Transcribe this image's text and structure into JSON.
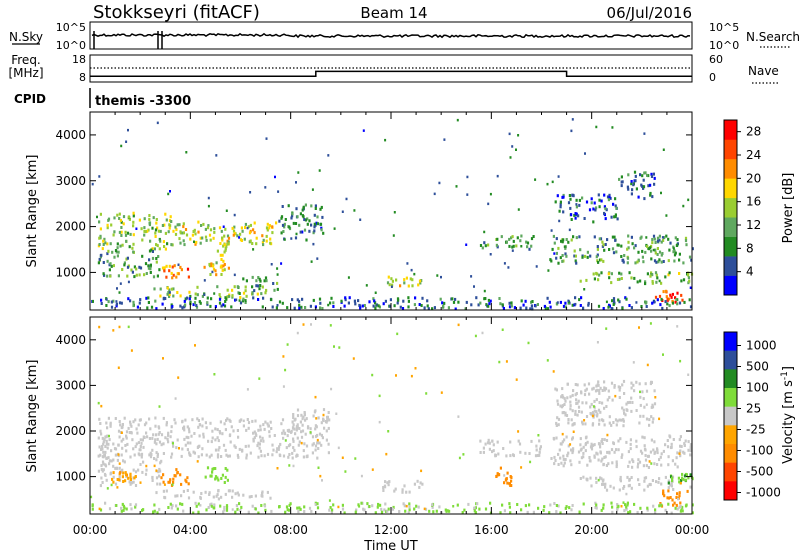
{
  "header": {
    "station": "Stokkseyri (fitACF)",
    "beam": "Beam 14",
    "date": "06/Jul/2016"
  },
  "left_labels": {
    "nsky": "N.Sky",
    "freq_line1": "Freq.",
    "freq_line2": "[MHz]",
    "cpid": "CPID"
  },
  "right_labels": {
    "nsearch": "N.Search",
    "nave": "Nave"
  },
  "cpid_name": "themis -3300",
  "colors": {
    "power": [
      "#0000ff",
      "#2e4f9a",
      "#228b22",
      "#5fa85f",
      "#9acd32",
      "#ffd700",
      "#ff8c00",
      "#ff4500",
      "#ff0000"
    ],
    "velocity": [
      "#ff0000",
      "#ff4500",
      "#ff8c00",
      "#ffa500",
      "#c8c8c8",
      "#c8c8c8",
      "#7fdc3a",
      "#228b22",
      "#2e4f9a",
      "#0000ff"
    ],
    "ground_scatter": "#c8c8c8"
  },
  "chart_data": [
    {
      "type": "line",
      "name": "nsky-nsearch-panel",
      "left_ticks": [
        "10^5",
        "10^0"
      ],
      "right_ticks": [
        "10^5",
        "10^0"
      ]
    },
    {
      "type": "line",
      "name": "freq-nave-panel",
      "left_ticks": [
        "18",
        "8"
      ],
      "right_ticks": [
        "60",
        "0"
      ],
      "x": [
        "00:00",
        "09:00",
        "09:00",
        "19:00",
        "19:00",
        "24:00"
      ],
      "freq_mhz": [
        10,
        10,
        12,
        12,
        10,
        10
      ]
    },
    {
      "type": "heatmap",
      "name": "power-panel",
      "ylabel": "Slant Range [km]",
      "yticks": [
        "1000",
        "2000",
        "3000",
        "4000"
      ],
      "ylim": [
        180,
        4500
      ],
      "colorbar_label": "Power [dB]",
      "colorbar_ticks": [
        "4",
        "8",
        "12",
        "16",
        "20",
        "24",
        "28"
      ],
      "colorbar_range": [
        0,
        30
      ],
      "regions": [
        {
          "t": [
            0.3,
            3.2
          ],
          "r": [
            1500,
            2300
          ],
          "dB": 14
        },
        {
          "t": [
            3.2,
            7.5
          ],
          "r": [
            1600,
            2100
          ],
          "dB": 16
        },
        {
          "t": [
            7.5,
            9.3
          ],
          "r": [
            1700,
            2500
          ],
          "dB": 8
        },
        {
          "t": [
            0.3,
            2.8
          ],
          "r": [
            900,
            1500
          ],
          "dB": 10
        },
        {
          "t": [
            2.8,
            3.9
          ],
          "r": [
            850,
            1150
          ],
          "dB": 22
        },
        {
          "t": [
            4.5,
            5.5
          ],
          "r": [
            950,
            1200
          ],
          "dB": 18
        },
        {
          "t": [
            5.0,
            5.6
          ],
          "r": [
            1200,
            1800
          ],
          "dB": 16
        },
        {
          "t": [
            2.5,
            7.0
          ],
          "r": [
            450,
            700
          ],
          "dB": 14
        },
        {
          "t": [
            6.0,
            7.5
          ],
          "r": [
            600,
            900
          ],
          "dB": 10
        },
        {
          "t": [
            11.8,
            13.2
          ],
          "r": [
            700,
            900
          ],
          "dB": 16
        },
        {
          "t": [
            15.5,
            17.8
          ],
          "r": [
            1500,
            1800
          ],
          "dB": 10
        },
        {
          "t": [
            18.3,
            24.0
          ],
          "r": [
            1200,
            1800
          ],
          "dB": 10
        },
        {
          "t": [
            18.5,
            21.0
          ],
          "r": [
            2100,
            2700
          ],
          "dB": 6
        },
        {
          "t": [
            21.0,
            22.5
          ],
          "r": [
            2600,
            3200
          ],
          "dB": 6
        },
        {
          "t": [
            19.5,
            24.0
          ],
          "r": [
            750,
            1000
          ],
          "dB": 12
        },
        {
          "t": [
            22.5,
            23.6
          ],
          "r": [
            350,
            600
          ],
          "dB": 26
        },
        {
          "t": [
            0.0,
            24.0
          ],
          "r": [
            200,
            450
          ],
          "dB": 6
        }
      ]
    },
    {
      "type": "heatmap",
      "name": "velocity-panel",
      "ylabel": "Slant Range [km]",
      "yticks": [
        "1000",
        "2000",
        "3000",
        "4000"
      ],
      "ylim": [
        180,
        4500
      ],
      "xlabel": "Time UT",
      "xticks": [
        "00:00",
        "04:00",
        "08:00",
        "12:00",
        "16:00",
        "20:00",
        "00:00"
      ],
      "xlim": [
        0,
        24
      ],
      "colorbar_label": "Velocity [m s^-1]",
      "colorbar_ticks": [
        "1000",
        "500",
        "100",
        "25",
        "-25",
        "-100",
        "-500",
        "-1000"
      ],
      "regions": [
        {
          "t": [
            0.3,
            9.5
          ],
          "r": [
            1400,
            2300
          ],
          "v": 0,
          "gs": true
        },
        {
          "t": [
            8.0,
            9.5
          ],
          "r": [
            2000,
            2500
          ],
          "v": 0,
          "gs": true
        },
        {
          "t": [
            0.3,
            2.8
          ],
          "r": [
            800,
            1500
          ],
          "v": 0,
          "gs": true
        },
        {
          "t": [
            0.8,
            1.8
          ],
          "r": [
            850,
            1100
          ],
          "v": -80
        },
        {
          "t": [
            2.8,
            3.9
          ],
          "r": [
            800,
            1200
          ],
          "v": -150
        },
        {
          "t": [
            4.5,
            5.5
          ],
          "r": [
            850,
            1200
          ],
          "v": 60
        },
        {
          "t": [
            2.5,
            7.2
          ],
          "r": [
            500,
            700
          ],
          "v": 0,
          "gs": true
        },
        {
          "t": [
            11.6,
            13.4
          ],
          "r": [
            650,
            900
          ],
          "v": 0,
          "gs": true
        },
        {
          "t": [
            15.5,
            18.0
          ],
          "r": [
            1450,
            1800
          ],
          "v": 0,
          "gs": true
        },
        {
          "t": [
            16.0,
            16.8
          ],
          "r": [
            800,
            1200
          ],
          "v": -200
        },
        {
          "t": [
            18.3,
            24.0
          ],
          "r": [
            1200,
            1900
          ],
          "v": 0,
          "gs": true
        },
        {
          "t": [
            18.5,
            22.5
          ],
          "r": [
            2100,
            3100
          ],
          "v": 0,
          "gs": true
        },
        {
          "t": [
            19.5,
            24.0
          ],
          "r": [
            700,
            1000
          ],
          "v": 0,
          "gs": true
        },
        {
          "t": [
            22.5,
            23.8
          ],
          "r": [
            350,
            700
          ],
          "v": -150
        },
        {
          "t": [
            23.0,
            24.0
          ],
          "r": [
            850,
            1050
          ],
          "v": 80
        },
        {
          "t": [
            0.0,
            24.0
          ],
          "r": [
            200,
            420
          ],
          "v": 30
        }
      ]
    }
  ]
}
